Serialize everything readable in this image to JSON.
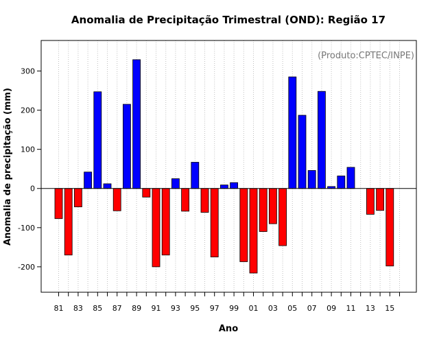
{
  "chart_data": {
    "type": "bar",
    "title": "Anomalia de Precipitação Trimestral (OND): Região 17",
    "xlabel": "Ano",
    "ylabel": "Anomalia de precipitação (mm)",
    "credit": "(Produto:CPTEC/INPE)",
    "ylim": [
      -265,
      378
    ],
    "yticks": [
      -200,
      -100,
      0,
      100,
      200,
      300
    ],
    "grid": "vertical-dotted",
    "colors": {
      "positive": "#0000ff",
      "negative": "#ff0000",
      "grid": "#bfbfbf"
    },
    "categories": [
      "81",
      "82",
      "83",
      "84",
      "85",
      "86",
      "87",
      "88",
      "89",
      "90",
      "91",
      "92",
      "93",
      "94",
      "95",
      "96",
      "97",
      "98",
      "99",
      "00",
      "01",
      "02",
      "03",
      "04",
      "05",
      "06",
      "07",
      "08",
      "09",
      "10",
      "11",
      "12",
      "13",
      "14",
      "15",
      "16"
    ],
    "tick_labels": [
      "81",
      "83",
      "85",
      "87",
      "89",
      "91",
      "93",
      "95",
      "97",
      "99",
      "01",
      "03",
      "05",
      "07",
      "09",
      "11",
      "13",
      "15"
    ],
    "values": [
      -77,
      -170,
      -47,
      42,
      247,
      12,
      -57,
      215,
      329,
      -22,
      -200,
      -170,
      25,
      -58,
      67,
      -61,
      -175,
      9,
      15,
      -187,
      -216,
      -110,
      -90,
      -146,
      285,
      187,
      46,
      248,
      5,
      32,
      54,
      0,
      -66,
      -56,
      -198,
      0
    ]
  }
}
